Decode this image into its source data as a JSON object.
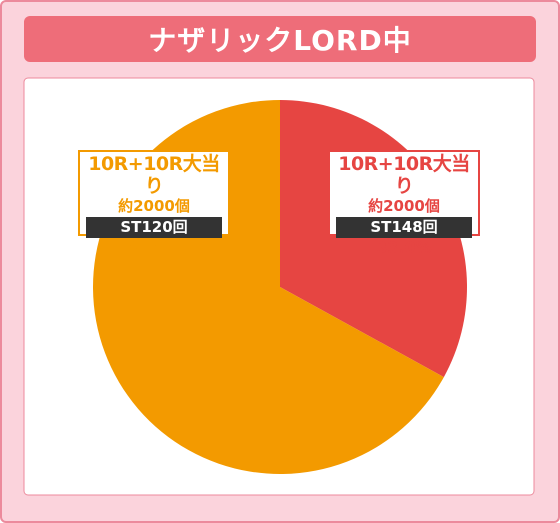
{
  "title": "ナザリックLORD中",
  "colors": {
    "frame_bg": "#fbd3dc",
    "frame_border": "#ec8a9c",
    "title_bg": "#ee6d79",
    "orange": "#f39a00",
    "red": "#e64542"
  },
  "chart_data": {
    "type": "pie",
    "slices": [
      {
        "label": "10R+10R大当り",
        "payout": "約2000個",
        "st": "ST148回",
        "percent_text": "33.0%",
        "value": 33.0,
        "color": "#e64542"
      },
      {
        "label": "10R+10R大当り",
        "payout": "約2000個",
        "st": "ST120回",
        "percent_text": "67.0%",
        "value": 67.0,
        "color": "#f39a00"
      }
    ]
  }
}
